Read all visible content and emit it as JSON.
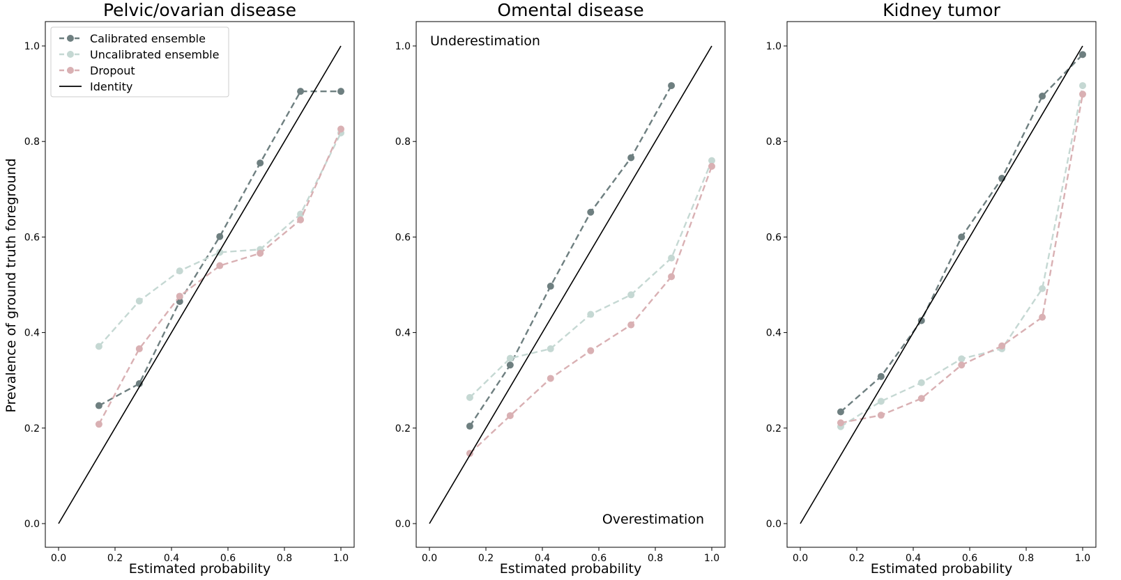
{
  "figure": {
    "ylabel": "Prevalence of ground truth foreground"
  },
  "series_style": [
    {
      "name": "Calibrated ensemble",
      "color": "#6e7f80"
    },
    {
      "name": "Uncalibrated ensemble",
      "color": "#c5d8d3"
    },
    {
      "name": "Dropout",
      "color": "#d9b0b3"
    }
  ],
  "identity": {
    "name": "Identity",
    "color": "#000000"
  },
  "chart_data": [
    {
      "type": "line",
      "title": "Pelvic/ovarian disease",
      "xlabel": "Estimated probability",
      "xlim": [
        0,
        1
      ],
      "ylim": [
        0,
        1
      ],
      "xticks": [
        "0.0",
        "0.2",
        "0.4",
        "0.6",
        "0.8",
        "1.0"
      ],
      "yticks": [
        "0.0",
        "0.2",
        "0.4",
        "0.6",
        "0.8",
        "1.0"
      ],
      "legend": {
        "position": "top-left",
        "entries": [
          "Calibrated ensemble",
          "Uncalibrated ensemble",
          "Dropout",
          "Identity"
        ]
      },
      "annotations": [],
      "series": [
        {
          "name": "Calibrated ensemble",
          "x": [
            0.143,
            0.286,
            0.429,
            0.571,
            0.714,
            0.857,
            1.0
          ],
          "y": [
            0.247,
            0.293,
            0.465,
            0.601,
            0.755,
            0.905,
            0.905
          ]
        },
        {
          "name": "Uncalibrated ensemble",
          "x": [
            0.143,
            0.286,
            0.429,
            0.571,
            0.714,
            0.857,
            1.0
          ],
          "y": [
            0.371,
            0.466,
            0.529,
            0.568,
            0.574,
            0.648,
            0.818
          ]
        },
        {
          "name": "Dropout",
          "x": [
            0.143,
            0.286,
            0.429,
            0.571,
            0.714,
            0.857,
            1.0
          ],
          "y": [
            0.208,
            0.366,
            0.476,
            0.54,
            0.566,
            0.636,
            0.826
          ]
        },
        {
          "name": "Identity",
          "x": [
            0,
            1
          ],
          "y": [
            0,
            1
          ]
        }
      ]
    },
    {
      "type": "line",
      "title": "Omental disease",
      "xlabel": "Estimated probability",
      "xlim": [
        0,
        1
      ],
      "ylim": [
        0,
        1
      ],
      "xticks": [
        "0.0",
        "0.2",
        "0.4",
        "0.6",
        "0.8",
        "1.0"
      ],
      "yticks": [
        "0.0",
        "0.2",
        "0.4",
        "0.6",
        "0.8",
        "1.0"
      ],
      "legend": null,
      "annotations": [
        {
          "text": "Underestimation",
          "position": "top-left"
        },
        {
          "text": "Overestimation",
          "position": "bottom-right"
        }
      ],
      "series": [
        {
          "name": "Calibrated ensemble",
          "x": [
            0.143,
            0.286,
            0.429,
            0.571,
            0.714,
            0.857
          ],
          "y": [
            0.204,
            0.332,
            0.497,
            0.652,
            0.766,
            0.917
          ]
        },
        {
          "name": "Uncalibrated ensemble",
          "x": [
            0.143,
            0.286,
            0.429,
            0.571,
            0.714,
            0.857,
            1.0
          ],
          "y": [
            0.264,
            0.346,
            0.366,
            0.438,
            0.479,
            0.556,
            0.76
          ]
        },
        {
          "name": "Dropout",
          "x": [
            0.143,
            0.286,
            0.429,
            0.571,
            0.714,
            0.857,
            1.0
          ],
          "y": [
            0.147,
            0.226,
            0.304,
            0.362,
            0.416,
            0.517,
            0.748
          ]
        },
        {
          "name": "Identity",
          "x": [
            0,
            1
          ],
          "y": [
            0,
            1
          ]
        }
      ]
    },
    {
      "type": "line",
      "title": "Kidney tumor",
      "xlabel": "Estimated probability",
      "xlim": [
        0,
        1
      ],
      "ylim": [
        0,
        1
      ],
      "xticks": [
        "0.0",
        "0.2",
        "0.4",
        "0.6",
        "0.8",
        "1.0"
      ],
      "yticks": [
        "0.0",
        "0.2",
        "0.4",
        "0.6",
        "0.8",
        "1.0"
      ],
      "legend": null,
      "annotations": [],
      "series": [
        {
          "name": "Calibrated ensemble",
          "x": [
            0.143,
            0.286,
            0.429,
            0.571,
            0.714,
            0.857,
            1.0
          ],
          "y": [
            0.234,
            0.308,
            0.425,
            0.6,
            0.723,
            0.895,
            0.982
          ]
        },
        {
          "name": "Uncalibrated ensemble",
          "x": [
            0.143,
            0.286,
            0.429,
            0.571,
            0.714,
            0.857,
            1.0
          ],
          "y": [
            0.203,
            0.256,
            0.295,
            0.345,
            0.366,
            0.492,
            0.917
          ]
        },
        {
          "name": "Dropout",
          "x": [
            0.143,
            0.286,
            0.429,
            0.571,
            0.714,
            0.857,
            1.0
          ],
          "y": [
            0.211,
            0.227,
            0.262,
            0.332,
            0.372,
            0.432,
            0.899
          ]
        },
        {
          "name": "Identity",
          "x": [
            0,
            1
          ],
          "y": [
            0,
            1
          ]
        }
      ]
    }
  ]
}
